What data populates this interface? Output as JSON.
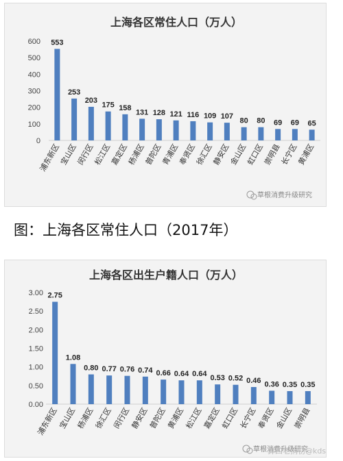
{
  "caption": "图：上海各区常住人口（2017年）",
  "image_watermark": "算四老捐初@kds",
  "colors": {
    "bar": "#4f7fbf",
    "card_bg": "#f3f3f3"
  },
  "chart_data": [
    {
      "type": "bar",
      "title": "上海各区常住人口（万人）",
      "categories": [
        "浦东新区",
        "宝山区",
        "闵行区",
        "松江区",
        "嘉定区",
        "杨浦区",
        "普陀区",
        "青浦区",
        "奉贤区",
        "徐汇区",
        "静安区",
        "金山区",
        "虹口区",
        "崇明县",
        "长宁区",
        "黄浦区"
      ],
      "values": [
        553,
        253,
        203,
        175,
        158,
        131,
        128,
        121,
        116,
        109,
        107,
        80,
        80,
        69,
        69,
        65
      ],
      "data_labels": [
        "553",
        "253",
        "203",
        "175",
        "158",
        "131",
        "128",
        "121",
        "116",
        "109",
        "107",
        "80",
        "80",
        "69",
        "69",
        "65"
      ],
      "ylim": [
        0,
        600
      ],
      "yticks": [
        "0",
        "100",
        "200",
        "300",
        "400",
        "500",
        "600"
      ],
      "grid": false,
      "watermark": "草根消费升级研究"
    },
    {
      "type": "bar",
      "title": "上海各区出生户籍人口（万人）",
      "categories": [
        "浦东新区",
        "宝山区",
        "杨浦区",
        "徐汇区",
        "闵行区",
        "静安区",
        "普陀区",
        "黄浦区",
        "松江区",
        "嘉定区",
        "虹口区",
        "长宁区",
        "奉贤区",
        "金山区",
        "崇明县"
      ],
      "values": [
        2.75,
        1.08,
        0.8,
        0.77,
        0.76,
        0.74,
        0.66,
        0.64,
        0.64,
        0.53,
        0.52,
        0.46,
        0.36,
        0.35,
        0.35
      ],
      "data_labels": [
        "2.75",
        "1.08",
        "0.80",
        "0.77",
        "0.76",
        "0.74",
        "0.66",
        "0.64",
        "0.64",
        "0.53",
        "0.52",
        "0.46",
        "0.36",
        "0.35",
        "0.35"
      ],
      "ylim": [
        0,
        3
      ],
      "yticks": [
        "0.00",
        "0.50",
        "1.00",
        "1.50",
        "2.00",
        "2.50",
        "3.00"
      ],
      "grid": false,
      "watermark": "草根消费升级研究"
    }
  ]
}
